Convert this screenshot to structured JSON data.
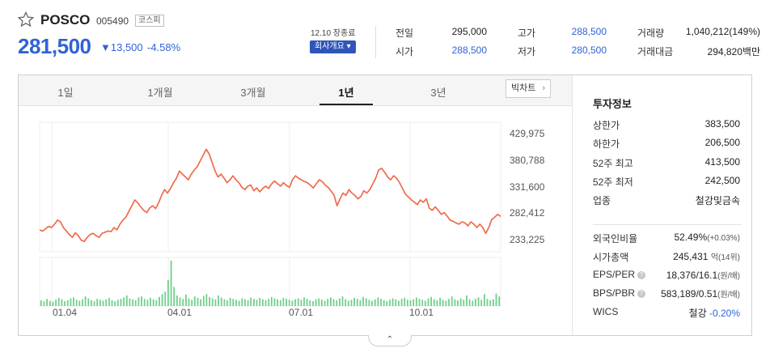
{
  "stock": {
    "name": "POSCO",
    "code": "005490",
    "market": "코스피",
    "price": "281,500",
    "change": "▼13,500",
    "change_pct": "-4.58%",
    "market_status": "12.10 장종료",
    "company_button": "회사개요 ▾"
  },
  "quote": {
    "prev_close": {
      "label": "전일",
      "value": "295,000"
    },
    "open": {
      "label": "시가",
      "value": "288,500"
    },
    "high": {
      "label": "고가",
      "value": "288,500"
    },
    "low": {
      "label": "저가",
      "value": "280,500"
    },
    "volume": {
      "label": "거래량",
      "value": "1,040,212(149%)"
    },
    "amount": {
      "label": "거래대금",
      "value": "294,820백만"
    }
  },
  "tabs": [
    {
      "label": "1일"
    },
    {
      "label": "1개월"
    },
    {
      "label": "3개월"
    },
    {
      "label": "1년",
      "active": true
    },
    {
      "label": "3년"
    }
  ],
  "big_chart_label": "빅차트",
  "chart_data": {
    "type": "line",
    "ylim": [
      220000,
      445000
    ],
    "yticks": [
      "429,975",
      "380,788",
      "331,600",
      "282,412",
      "233,225"
    ],
    "xticks": [
      "01.04",
      "04.01",
      "07.01",
      "10.01"
    ],
    "series": [
      {
        "values": [
          258000,
          256000,
          260000,
          264000,
          262000,
          268000,
          275000,
          272000,
          262000,
          256000,
          250000,
          245000,
          253000,
          248000,
          240000,
          238000,
          245000,
          250000,
          252000,
          248000,
          245000,
          252000,
          254000,
          256000,
          255000,
          262000,
          258000,
          268000,
          275000,
          280000,
          290000,
          300000,
          310000,
          305000,
          298000,
          292000,
          288000,
          296000,
          300000,
          295000,
          305000,
          318000,
          328000,
          322000,
          330000,
          340000,
          348000,
          360000,
          355000,
          350000,
          345000,
          355000,
          362000,
          368000,
          378000,
          388000,
          398000,
          390000,
          375000,
          360000,
          350000,
          355000,
          348000,
          340000,
          345000,
          352000,
          345000,
          340000,
          332000,
          328000,
          334000,
          336000,
          326000,
          331000,
          324000,
          330000,
          334000,
          330000,
          338000,
          343000,
          338000,
          334000,
          340000,
          335000,
          332000,
          345000,
          352000,
          348000,
          345000,
          342000,
          340000,
          336000,
          331000,
          338000,
          345000,
          342000,
          336000,
          332000,
          325000,
          318000,
          300000,
          312000,
          322000,
          318000,
          328000,
          322000,
          318000,
          312000,
          316000,
          326000,
          322000,
          328000,
          338000,
          348000,
          362000,
          365000,
          358000,
          350000,
          345000,
          352000,
          348000,
          340000,
          330000,
          320000,
          315000,
          310000,
          306000,
          302000,
          310000,
          306000,
          312000,
          296000,
          292000,
          298000,
          292000,
          285000,
          288000,
          282000,
          275000,
          273000,
          270000,
          268000,
          272000,
          270000,
          265000,
          272000,
          268000,
          262000,
          268000,
          262000,
          252000,
          262000,
          276000,
          280000,
          285000,
          281500
        ]
      }
    ],
    "volume": [
      12,
      10,
      15,
      11,
      9,
      13,
      17,
      14,
      10,
      12,
      16,
      18,
      13,
      11,
      14,
      20,
      16,
      12,
      10,
      15,
      13,
      11,
      14,
      17,
      12,
      10,
      13,
      15,
      18,
      22,
      16,
      14,
      12,
      18,
      20,
      15,
      13,
      17,
      14,
      12,
      19,
      25,
      30,
      55,
      95,
      40,
      22,
      18,
      15,
      24,
      16,
      13,
      20,
      17,
      14,
      21,
      25,
      19,
      16,
      14,
      22,
      18,
      14,
      12,
      17,
      15,
      13,
      11,
      16,
      14,
      12,
      18,
      15,
      13,
      17,
      14,
      12,
      15,
      19,
      16,
      14,
      12,
      17,
      15,
      13,
      11,
      14,
      16,
      13,
      18,
      15,
      12,
      10,
      14,
      16,
      13,
      11,
      15,
      18,
      14,
      12,
      16,
      20,
      14,
      11,
      13,
      17,
      15,
      12,
      19,
      16,
      13,
      11,
      14,
      18,
      15,
      12,
      10,
      13,
      16,
      14,
      11,
      15,
      17,
      13,
      12,
      14,
      18,
      15,
      13,
      11,
      16,
      19,
      14,
      12,
      17,
      13,
      11,
      15,
      20,
      14,
      12,
      16,
      13,
      22,
      14,
      11,
      15,
      18,
      13,
      25,
      15,
      12,
      14,
      26,
      20
    ]
  },
  "invest": {
    "title": "투자정보",
    "rows": [
      {
        "label": "상한가",
        "value": "383,500",
        "color": "#e0343a"
      },
      {
        "label": "하한가",
        "value": "206,500",
        "color": "#2f63d6"
      },
      {
        "label": "52주 최고",
        "value": "413,500"
      },
      {
        "label": "52주 최저",
        "value": "242,500"
      },
      {
        "label": "업종",
        "value": "철강및금속"
      }
    ],
    "rows2": [
      {
        "label": "외국인비율",
        "value": "52.49%",
        "sub": "(+0.03%)"
      },
      {
        "label": "시가총액",
        "value": "245,431",
        "sub": "억(14위)"
      },
      {
        "label": "EPS/PER",
        "value": "18,376/16.1",
        "sub": "(원/배)",
        "hint": "?"
      },
      {
        "label": "BPS/PBR",
        "value": "583,189/0.51",
        "sub": "(원/배)",
        "hint": "?"
      },
      {
        "label": "WICS",
        "value": "철강",
        "pct": "-0.20%"
      }
    ]
  },
  "collapse_label": "⌃"
}
